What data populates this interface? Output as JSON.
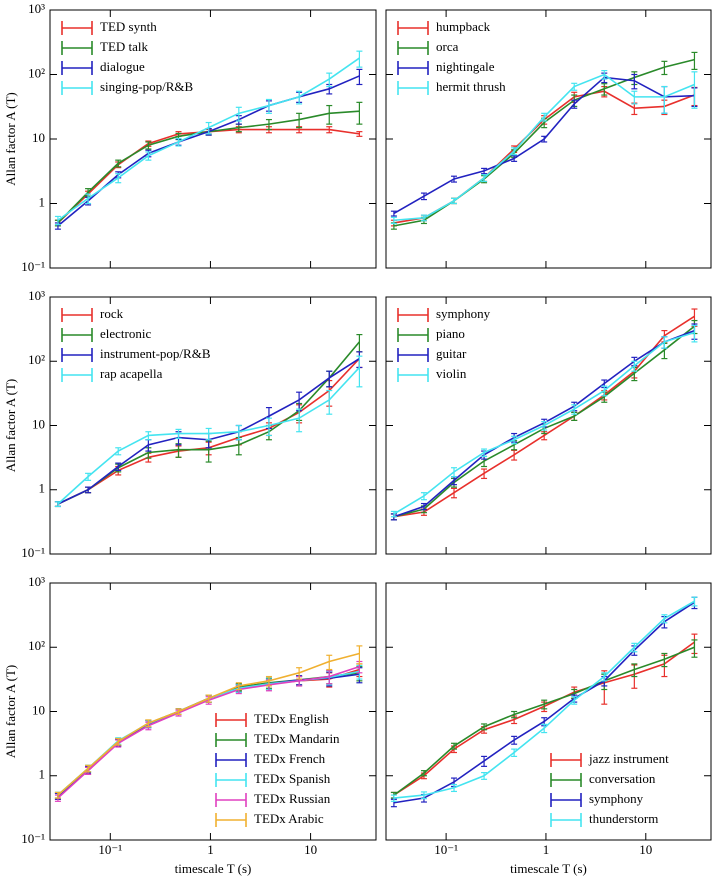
{
  "chart_data": [
    {
      "type": "line",
      "x": [
        0.03,
        0.06,
        0.12,
        0.24,
        0.48,
        0.96,
        1.92,
        3.84,
        7.68,
        15.36,
        30.72
      ],
      "xlim": [
        0.025,
        45
      ],
      "ylim": [
        0.1,
        1000
      ],
      "log_x": true,
      "log_y": true,
      "legend": "upper left",
      "y_label": "Allan factor A (T)",
      "xticks": [
        0.1,
        1,
        10
      ],
      "yticks": [
        {
          "value": 0.1,
          "label": "10⁻¹"
        },
        1,
        10,
        {
          "value": 100,
          "label": "10²"
        },
        {
          "value": 1000,
          "label": "10³"
        }
      ],
      "series": [
        {
          "name": "TED synth",
          "color": "#e8302c",
          "values": [
            0.5,
            1.4,
            4,
            8.5,
            12,
            13,
            14,
            14,
            14,
            14,
            12
          ],
          "errors": [
            0.05,
            0.15,
            0.4,
            0.8,
            1,
            1,
            1.5,
            1.5,
            1.5,
            1.5,
            1
          ]
        },
        {
          "name": "TED talk",
          "color": "#2a8a2a",
          "values": [
            0.5,
            1.5,
            4.2,
            8,
            11,
            13,
            15,
            17,
            20,
            25,
            27
          ],
          "errors": [
            0.05,
            0.2,
            0.5,
            1,
            1.2,
            1.5,
            2,
            3,
            5,
            8,
            10
          ]
        },
        {
          "name": "dialogue",
          "color": "#2222c0",
          "values": [
            0.45,
            1.1,
            2.8,
            6,
            9,
            13,
            20,
            33,
            45,
            60,
            95
          ],
          "errors": [
            0.05,
            0.15,
            0.3,
            0.7,
            1,
            1.5,
            3,
            6,
            8,
            10,
            25
          ]
        },
        {
          "name": "singing-pop/R&B",
          "color": "#44e4f0",
          "values": [
            0.55,
            1.2,
            2.5,
            5.5,
            9,
            15,
            25,
            33,
            45,
            85,
            180
          ],
          "errors": [
            0.08,
            0.2,
            0.4,
            0.8,
            1.2,
            3,
            6,
            8,
            10,
            20,
            50
          ]
        }
      ]
    },
    {
      "type": "line",
      "x": [
        0.03,
        0.06,
        0.12,
        0.24,
        0.48,
        0.96,
        1.92,
        3.84,
        7.68,
        15.36,
        30.72
      ],
      "xlim": [
        0.025,
        45
      ],
      "ylim": [
        0.1,
        1000
      ],
      "log_x": true,
      "log_y": true,
      "legend": "upper left",
      "xticks": [
        0.1,
        1,
        10
      ],
      "yticks": [
        0.1,
        1,
        10,
        100,
        1000
      ],
      "series": [
        {
          "name": "humpback",
          "color": "#e8302c",
          "values": [
            0.5,
            0.6,
            1.1,
            2.5,
            7,
            20,
            45,
            55,
            30,
            32,
            48
          ],
          "errors": [
            0.05,
            0.06,
            0.1,
            0.3,
            0.8,
            3,
            8,
            10,
            6,
            8,
            15
          ]
        },
        {
          "name": "orca",
          "color": "#2a8a2a",
          "values": [
            0.45,
            0.55,
            1.1,
            2.4,
            6,
            18,
            40,
            60,
            90,
            130,
            170
          ],
          "errors": [
            0.05,
            0.06,
            0.1,
            0.3,
            0.8,
            3,
            8,
            12,
            20,
            30,
            50
          ]
        },
        {
          "name": "nightingale",
          "color": "#2222c0",
          "values": [
            0.7,
            1.3,
            2.4,
            3.2,
            5,
            10,
            35,
            90,
            80,
            45,
            47
          ],
          "errors": [
            0.06,
            0.15,
            0.25,
            0.3,
            0.5,
            1,
            5,
            15,
            20,
            20,
            15
          ]
        },
        {
          "name": "hermit thrush",
          "color": "#44e4f0",
          "values": [
            0.55,
            0.6,
            1.1,
            2.5,
            6.5,
            22,
            65,
            100,
            45,
            45,
            70
          ],
          "errors": [
            0.06,
            0.06,
            0.1,
            0.3,
            0.8,
            3,
            8,
            15,
            10,
            20,
            40
          ]
        }
      ]
    },
    {
      "type": "line",
      "x": [
        0.03,
        0.06,
        0.12,
        0.24,
        0.48,
        0.96,
        1.92,
        3.84,
        7.68,
        15.36,
        30.72
      ],
      "xlim": [
        0.025,
        45
      ],
      "ylim": [
        0.1,
        1000
      ],
      "log_x": true,
      "log_y": true,
      "legend": "upper left",
      "y_label": "Allan factor A (T)",
      "xticks": [
        0.1,
        1,
        10
      ],
      "yticks": [
        {
          "value": 0.1,
          "label": "10⁻¹"
        },
        1,
        10,
        {
          "value": 100,
          "label": "10²"
        },
        {
          "value": 1000,
          "label": "10³"
        }
      ],
      "series": [
        {
          "name": "rock",
          "color": "#e8302c",
          "values": [
            0.6,
            1.0,
            2,
            3.2,
            4,
            4.5,
            6.5,
            9,
            16,
            35,
            110
          ],
          "errors": [
            0.05,
            0.1,
            0.3,
            0.5,
            0.8,
            1,
            1.5,
            2,
            5,
            15,
            30
          ]
        },
        {
          "name": "electronic",
          "color": "#2a8a2a",
          "values": [
            0.6,
            1.0,
            2.2,
            3.8,
            4.2,
            4.2,
            5,
            8,
            17,
            55,
            200
          ],
          "errors": [
            0.05,
            0.1,
            0.3,
            0.7,
            1,
            1.5,
            1.5,
            2,
            5,
            15,
            60
          ]
        },
        {
          "name": "instrument-pop/R&B",
          "color": "#2222c0",
          "values": [
            0.6,
            1.0,
            2.3,
            5,
            6.5,
            6,
            8,
            14,
            25,
            55,
            110
          ],
          "errors": [
            0.05,
            0.1,
            0.3,
            1,
            1.5,
            1.5,
            2,
            5,
            8,
            15,
            30
          ]
        },
        {
          "name": "rap acapella",
          "color": "#44e4f0",
          "values": [
            0.6,
            1.6,
            4,
            7,
            7.5,
            7.5,
            8,
            10,
            13,
            25,
            80
          ],
          "errors": [
            0.05,
            0.2,
            0.5,
            1,
            1.2,
            1.5,
            2,
            3,
            5,
            10,
            40
          ]
        }
      ]
    },
    {
      "type": "line",
      "x": [
        0.03,
        0.06,
        0.12,
        0.24,
        0.48,
        0.96,
        1.92,
        3.84,
        7.68,
        15.36,
        30.72
      ],
      "xlim": [
        0.025,
        45
      ],
      "ylim": [
        0.1,
        1000
      ],
      "log_x": true,
      "log_y": true,
      "legend": "upper left",
      "xticks": [
        0.1,
        1,
        10
      ],
      "yticks": [
        0.1,
        1,
        10,
        100,
        1000
      ],
      "series": [
        {
          "name": "symphony",
          "color": "#e8302c",
          "values": [
            0.38,
            0.45,
            0.9,
            1.8,
            3.5,
            7,
            14,
            30,
            70,
            250,
            500
          ],
          "errors": [
            0.04,
            0.05,
            0.15,
            0.3,
            0.6,
            1,
            2,
            5,
            15,
            50,
            150
          ]
        },
        {
          "name": "piano",
          "color": "#2a8a2a",
          "values": [
            0.38,
            0.5,
            1.3,
            2.8,
            5,
            9,
            14,
            28,
            65,
            150,
            350
          ],
          "errors": [
            0.04,
            0.06,
            0.2,
            0.5,
            0.8,
            1.5,
            2,
            5,
            15,
            40,
            80
          ]
        },
        {
          "name": "guitar",
          "color": "#2222c0",
          "values": [
            0.38,
            0.55,
            1.4,
            3.5,
            6.5,
            11,
            20,
            45,
            100,
            200,
            300
          ],
          "errors": [
            0.04,
            0.06,
            0.2,
            0.5,
            1,
            1.5,
            3,
            6,
            15,
            40,
            80
          ]
        },
        {
          "name": "violin",
          "color": "#44e4f0",
          "values": [
            0.42,
            0.8,
            1.9,
            3.8,
            6,
            10,
            18,
            35,
            85,
            200,
            280
          ],
          "errors": [
            0.04,
            0.1,
            0.3,
            0.5,
            0.8,
            1.5,
            3,
            6,
            15,
            40,
            80
          ]
        }
      ]
    },
    {
      "type": "line",
      "x": [
        0.03,
        0.06,
        0.12,
        0.24,
        0.48,
        0.96,
        1.92,
        3.84,
        7.68,
        15.36,
        30.72
      ],
      "xlim": [
        0.025,
        45
      ],
      "ylim": [
        0.1,
        1000
      ],
      "log_x": true,
      "log_y": true,
      "legend": "lower right",
      "y_label": "Allan factor A (T)",
      "x_label": "timescale T (s)",
      "xticks": [
        {
          "value": 0.1,
          "label": "10⁻¹"
        },
        1,
        10
      ],
      "yticks": [
        {
          "value": 0.1,
          "label": "10⁻¹"
        },
        1,
        10,
        {
          "value": 100,
          "label": "10²"
        },
        {
          "value": 1000,
          "label": "10³"
        }
      ],
      "series": [
        {
          "name": "TEDx English",
          "color": "#e8302c",
          "values": [
            0.48,
            1.2,
            3.3,
            6.5,
            10,
            16,
            24,
            27,
            30,
            32,
            45
          ],
          "errors": [
            0.05,
            0.15,
            0.4,
            0.8,
            1,
            2,
            3,
            5,
            5,
            8,
            10
          ]
        },
        {
          "name": "TEDx Mandarin",
          "color": "#2a8a2a",
          "values": [
            0.5,
            1.3,
            3.4,
            6.5,
            10,
            16,
            24,
            28,
            31,
            35,
            40
          ],
          "errors": [
            0.05,
            0.15,
            0.4,
            0.8,
            1,
            2,
            3,
            5,
            5,
            8,
            10
          ]
        },
        {
          "name": "TEDx French",
          "color": "#2222c0",
          "values": [
            0.48,
            1.25,
            3.3,
            6.4,
            10,
            16,
            23,
            27,
            31,
            33,
            38
          ],
          "errors": [
            0.05,
            0.15,
            0.4,
            0.8,
            1,
            2,
            3,
            5,
            5,
            8,
            10
          ]
        },
        {
          "name": "TEDx Spanish",
          "color": "#44e4f0",
          "values": [
            0.5,
            1.3,
            3.5,
            6.5,
            10,
            16,
            23,
            27,
            30,
            34,
            42
          ],
          "errors": [
            0.05,
            0.15,
            0.4,
            0.8,
            1,
            2,
            3,
            5,
            5,
            8,
            10
          ]
        },
        {
          "name": "TEDx Russian",
          "color": "#e040c0",
          "values": [
            0.45,
            1.2,
            3.2,
            6,
            9.5,
            15,
            22,
            26,
            30,
            35,
            50
          ],
          "errors": [
            0.05,
            0.15,
            0.4,
            0.8,
            1,
            2,
            3,
            5,
            5,
            8,
            10
          ]
        },
        {
          "name": "TEDx Arabic",
          "color": "#f0b030",
          "values": [
            0.5,
            1.3,
            3.4,
            6.6,
            10,
            16,
            25,
            30,
            40,
            60,
            80
          ],
          "errors": [
            0.05,
            0.15,
            0.4,
            0.8,
            1,
            2,
            3,
            5,
            8,
            15,
            25
          ]
        }
      ]
    },
    {
      "type": "line",
      "x": [
        0.03,
        0.06,
        0.12,
        0.24,
        0.48,
        0.96,
        1.92,
        3.84,
        7.68,
        15.36,
        30.72
      ],
      "xlim": [
        0.025,
        45
      ],
      "ylim": [
        0.1,
        1000
      ],
      "log_x": true,
      "log_y": true,
      "legend": "lower right",
      "x_label": "timescale T (s)",
      "xticks": [
        {
          "value": 0.1,
          "label": "10⁻¹"
        },
        1,
        10
      ],
      "yticks": [
        0.1,
        1,
        10,
        100,
        1000
      ],
      "series": [
        {
          "name": "jazz instrument",
          "color": "#e8302c",
          "values": [
            0.5,
            1.0,
            2.6,
            5.2,
            7.5,
            12,
            20,
            28,
            38,
            55,
            120
          ],
          "errors": [
            0.05,
            0.1,
            0.3,
            0.6,
            1,
            2,
            4,
            15,
            15,
            20,
            40
          ]
        },
        {
          "name": "conversation",
          "color": "#2a8a2a",
          "values": [
            0.5,
            1.1,
            2.9,
            5.8,
            9,
            13,
            19,
            30,
            45,
            65,
            100
          ],
          "errors": [
            0.05,
            0.1,
            0.3,
            0.6,
            1,
            2,
            3,
            8,
            10,
            15,
            30
          ]
        },
        {
          "name": "symphony",
          "color": "#2222c0",
          "values": [
            0.38,
            0.45,
            0.8,
            1.7,
            3.6,
            7,
            16,
            30,
            90,
            250,
            500
          ],
          "errors": [
            0.05,
            0.06,
            0.12,
            0.3,
            0.5,
            1,
            2,
            5,
            15,
            50,
            100
          ]
        },
        {
          "name": "thunderstorm",
          "color": "#44e4f0",
          "values": [
            0.45,
            0.5,
            0.65,
            1.0,
            2.3,
            5.5,
            15,
            35,
            100,
            280,
            520
          ],
          "errors": [
            0.05,
            0.06,
            0.08,
            0.12,
            0.3,
            0.8,
            2,
            5,
            15,
            40,
            80
          ]
        }
      ]
    }
  ]
}
